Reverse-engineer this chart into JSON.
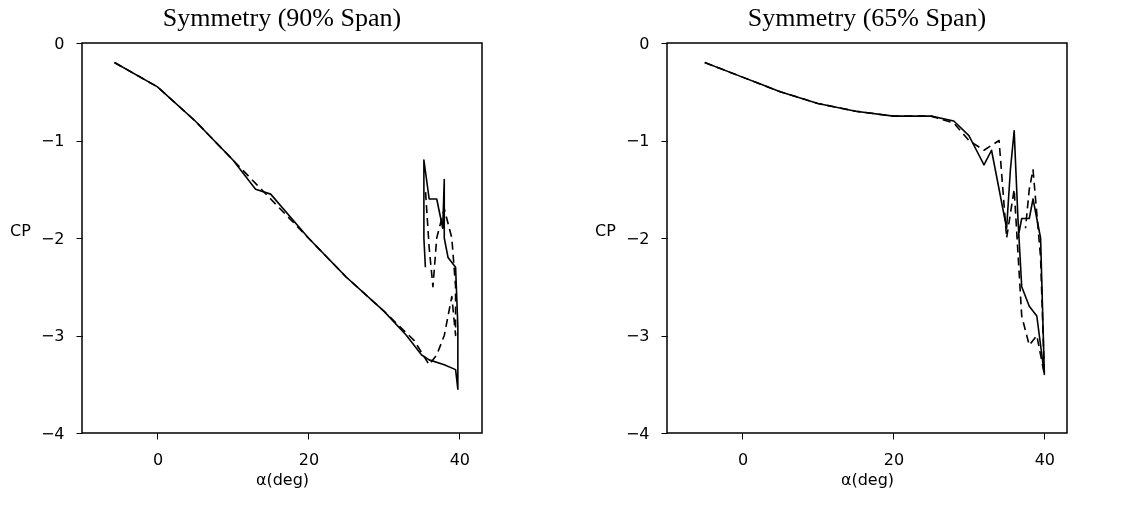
{
  "chart_data": [
    {
      "type": "line",
      "title": "Symmetry (90% Span)",
      "xlabel": "α(deg)",
      "ylabel": "CP",
      "xlim": [
        -10,
        43
      ],
      "ylim": [
        -4,
        0
      ],
      "xticks": [
        0,
        20,
        40
      ],
      "yticks": [
        -4,
        -3,
        -2,
        -1,
        0
      ],
      "grid": false,
      "series": [
        {
          "color": "#000000",
          "line_style": "solid",
          "x": [
            -5.7,
            0,
            5,
            10,
            13,
            15,
            20,
            25,
            30,
            33,
            35,
            36,
            38,
            39.5,
            39.8,
            39.8,
            39.5,
            38.5,
            38,
            38,
            37.8,
            37,
            36,
            35.3,
            35.3,
            35.5
          ],
          "values": [
            -0.2,
            -0.45,
            -0.8,
            -1.2,
            -1.5,
            -1.55,
            -2.0,
            -2.4,
            -2.75,
            -3.0,
            -3.2,
            -3.25,
            -3.3,
            -3.35,
            -3.55,
            -2.9,
            -2.3,
            -2.2,
            -2.0,
            -1.4,
            -1.9,
            -1.6,
            -1.6,
            -1.2,
            -2.0,
            -2.3
          ]
        },
        {
          "color": "#000000",
          "line_style": "dashed",
          "x": [
            -5.7,
            0,
            5,
            10,
            15,
            20,
            25,
            30,
            34,
            36,
            37,
            38,
            38.5,
            39,
            39.5,
            39.5,
            39,
            38,
            37,
            36.5,
            36,
            35.5
          ],
          "values": [
            -0.2,
            -0.45,
            -0.8,
            -1.2,
            -1.6,
            -2.0,
            -2.4,
            -2.75,
            -3.05,
            -3.3,
            -3.2,
            -3.0,
            -2.8,
            -2.6,
            -3.0,
            -2.5,
            -2.0,
            -1.7,
            -2.0,
            -2.5,
            -2.1,
            -1.5
          ]
        }
      ]
    },
    {
      "type": "line",
      "title": "Symmetry (65% Span)",
      "xlabel": "α(deg)",
      "ylabel": "CP",
      "xlim": [
        -10,
        43
      ],
      "ylim": [
        -4,
        0
      ],
      "xticks": [
        0,
        20,
        40
      ],
      "yticks": [
        -4,
        -3,
        -2,
        -1,
        0
      ],
      "grid": false,
      "series": [
        {
          "color": "#000000",
          "line_style": "solid",
          "x": [
            -5,
            0,
            5,
            10,
            15,
            20,
            25,
            28,
            30,
            31,
            32,
            33,
            34,
            35,
            35.5,
            36,
            36.5,
            37,
            38,
            39,
            40,
            39.5,
            38.5,
            38,
            37,
            36.5
          ],
          "values": [
            -0.2,
            -0.35,
            -0.5,
            -0.62,
            -0.7,
            -0.75,
            -0.75,
            -0.8,
            -0.95,
            -1.1,
            -1.25,
            -1.1,
            -1.5,
            -1.9,
            -1.3,
            -0.9,
            -1.8,
            -2.5,
            -2.7,
            -2.8,
            -3.4,
            -2.0,
            -1.6,
            -1.8,
            -1.8,
            -2.0
          ]
        },
        {
          "color": "#000000",
          "line_style": "dashed",
          "x": [
            -5,
            0,
            5,
            10,
            15,
            20,
            25,
            28,
            30,
            32,
            34,
            35,
            36,
            37,
            38,
            39,
            40,
            39.5,
            38.5,
            38,
            37.5
          ],
          "values": [
            -0.2,
            -0.35,
            -0.5,
            -0.62,
            -0.7,
            -0.75,
            -0.75,
            -0.82,
            -1.0,
            -1.1,
            -1.0,
            -2.0,
            -1.5,
            -2.8,
            -3.1,
            -3.0,
            -3.4,
            -2.2,
            -1.3,
            -1.5,
            -1.9
          ]
        }
      ]
    }
  ]
}
